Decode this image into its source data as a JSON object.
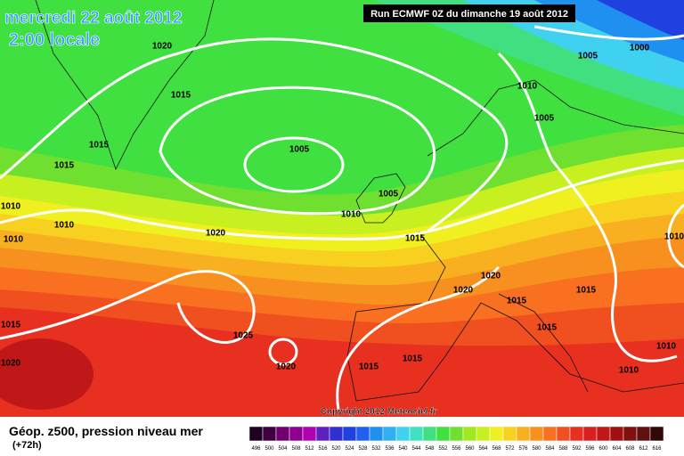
{
  "header": {
    "date": "mercredi 22 août 2012",
    "time": "2:00 locale",
    "run": "Run ECMWF 0Z du dimanche 19 août 2012"
  },
  "isobar_labels": [
    "1020",
    "1015",
    "1015",
    "1015",
    "1005",
    "1005",
    "1010",
    "1010",
    "1010",
    "1010",
    "1020",
    "1015",
    "1010",
    "1005",
    "1000",
    "1005",
    "1020",
    "1020",
    "1015",
    "1015",
    "1015",
    "1015",
    "1025",
    "1020",
    "1020",
    "1015",
    "1015",
    "1010",
    "1010",
    "1010"
  ],
  "copyright": "Copyright 2012 Meteociel.fr",
  "footer": {
    "title": "Géop. z500, pression niveau mer",
    "lead": "(+72h)"
  },
  "legend": {
    "ticks": [
      496,
      500,
      504,
      508,
      512,
      516,
      520,
      524,
      528,
      532,
      536,
      540,
      544,
      548,
      552,
      556,
      560,
      564,
      568,
      572,
      576,
      580,
      584,
      588,
      592,
      596,
      600,
      604,
      608,
      612,
      616
    ],
    "colors": [
      "#200020",
      "#400040",
      "#700070",
      "#900090",
      "#b000b0",
      "#6020c0",
      "#3030d0",
      "#2040e0",
      "#2060f0",
      "#2090f0",
      "#30b0f0",
      "#40d0f0",
      "#40e0c0",
      "#40e080",
      "#40e040",
      "#70e030",
      "#a0e820",
      "#c8f020",
      "#f0f020",
      "#f8d020",
      "#f8b020",
      "#f89020",
      "#f87020",
      "#f05020",
      "#e83020",
      "#d82020",
      "#c01818",
      "#a01010",
      "#801010",
      "#601010",
      "#300808"
    ]
  }
}
